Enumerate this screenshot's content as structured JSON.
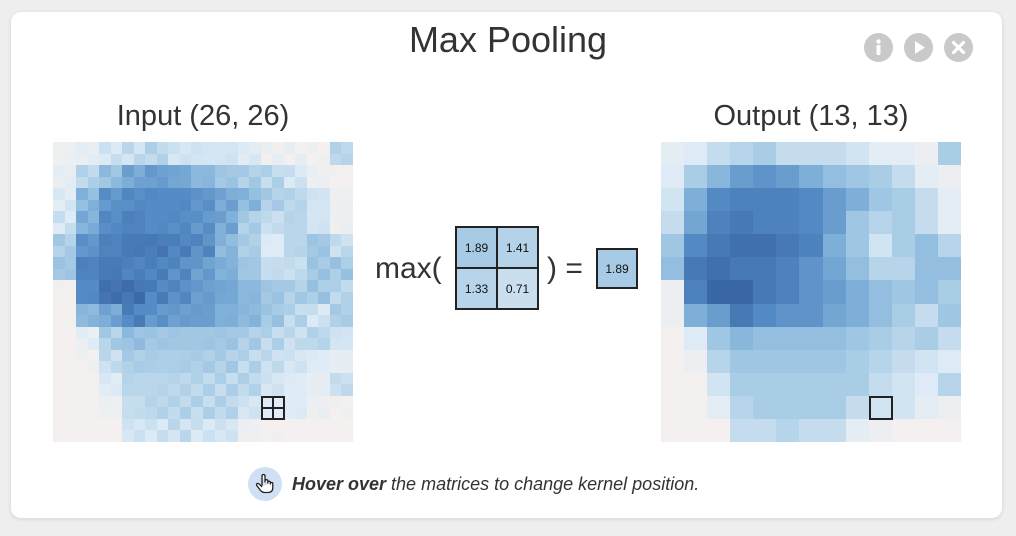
{
  "title": "Max Pooling",
  "controls": [
    {
      "name": "info-icon",
      "glyph": "i"
    },
    {
      "name": "play-icon",
      "glyph": "play"
    },
    {
      "name": "close-icon",
      "glyph": "x"
    }
  ],
  "input_label": "Input (26, 26)",
  "output_label": "Output (13, 13)",
  "equation": {
    "max_label": "max(",
    "close_label": ") =",
    "kernel_values": [
      "1.89",
      "1.41",
      "1.33",
      "0.71"
    ],
    "result": "1.89"
  },
  "hint": {
    "bold": "Hover over",
    "rest": " the matrices to change kernel position."
  },
  "kernel_position": {
    "row": 11,
    "col": 9
  },
  "output_matrix": [
    [
      0.1,
      0.15,
      0.25,
      0.3,
      0.35,
      0.25,
      0.25,
      0.25,
      0.2,
      0.1,
      0.1,
      0.05,
      0.35
    ],
    [
      0.15,
      0.35,
      0.5,
      0.65,
      0.7,
      0.65,
      0.55,
      0.45,
      0.4,
      0.35,
      0.25,
      0.1,
      0.05
    ],
    [
      0.2,
      0.55,
      0.75,
      0.8,
      0.8,
      0.8,
      0.75,
      0.65,
      0.55,
      0.4,
      0.35,
      0.25,
      0.1
    ],
    [
      0.25,
      0.6,
      0.8,
      0.85,
      0.8,
      0.8,
      0.75,
      0.65,
      0.4,
      0.3,
      0.35,
      0.25,
      0.1
    ],
    [
      0.4,
      0.75,
      0.85,
      0.9,
      0.9,
      0.85,
      0.8,
      0.55,
      0.4,
      0.2,
      0.35,
      0.45,
      0.3
    ],
    [
      0.45,
      0.85,
      0.9,
      0.85,
      0.85,
      0.8,
      0.7,
      0.6,
      0.45,
      0.3,
      0.3,
      0.45,
      0.45
    ],
    [
      0.05,
      0.8,
      0.95,
      0.95,
      0.85,
      0.8,
      0.7,
      0.65,
      0.55,
      0.45,
      0.4,
      0.45,
      0.35
    ],
    [
      0.05,
      0.55,
      0.65,
      0.85,
      0.75,
      0.7,
      0.7,
      0.6,
      0.55,
      0.45,
      0.35,
      0.25,
      0.4
    ],
    [
      0.0,
      0.15,
      0.4,
      0.5,
      0.45,
      0.45,
      0.45,
      0.45,
      0.4,
      0.35,
      0.3,
      0.35,
      0.25
    ],
    [
      0.0,
      0.05,
      0.3,
      0.4,
      0.4,
      0.4,
      0.4,
      0.4,
      0.35,
      0.3,
      0.25,
      0.2,
      0.15
    ],
    [
      0.0,
      0.0,
      0.2,
      0.35,
      0.35,
      0.35,
      0.35,
      0.35,
      0.35,
      0.25,
      0.2,
      0.15,
      0.3
    ],
    [
      0.0,
      0.0,
      0.1,
      0.3,
      0.35,
      0.35,
      0.35,
      0.35,
      0.25,
      0.2,
      0.2,
      0.1,
      0.05
    ],
    [
      0.0,
      0.0,
      0.0,
      0.25,
      0.25,
      0.3,
      0.25,
      0.25,
      0.1,
      0.05,
      0.0,
      0.0,
      0.0
    ]
  ],
  "colors": {
    "background": "#f3f0ef",
    "accent": "#3a6ea5"
  }
}
